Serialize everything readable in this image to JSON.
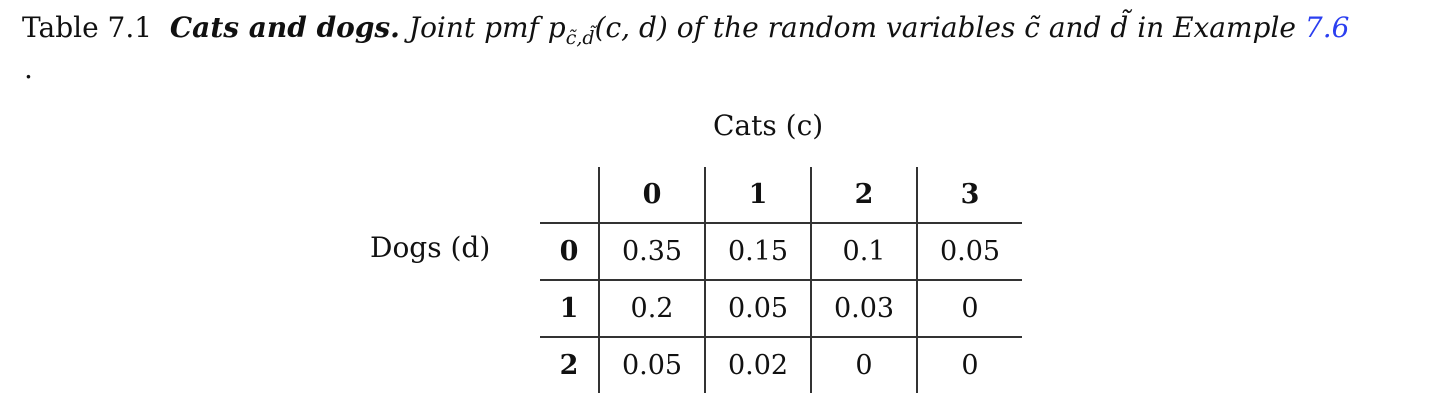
{
  "caption": {
    "label": "Table 7.1",
    "title": "Cats and dogs.",
    "text_before": "Joint pmf p",
    "subscript": "c̃,d̃",
    "args": "(c, d)",
    "text_after": "of the random variables c̃ and d̃ in Example",
    "ref": "7.6",
    "trailing": "."
  },
  "table": {
    "column_header": "Cats (c)",
    "row_header": "Dogs (d)",
    "columns": [
      "0",
      "1",
      "2",
      "3"
    ],
    "rows": [
      {
        "label": "0",
        "values": [
          "0.35",
          "0.15",
          "0.1",
          "0.05"
        ]
      },
      {
        "label": "1",
        "values": [
          "0.2",
          "0.05",
          "0.03",
          "0"
        ]
      },
      {
        "label": "2",
        "values": [
          "0.05",
          "0.02",
          "0",
          "0"
        ]
      }
    ]
  }
}
